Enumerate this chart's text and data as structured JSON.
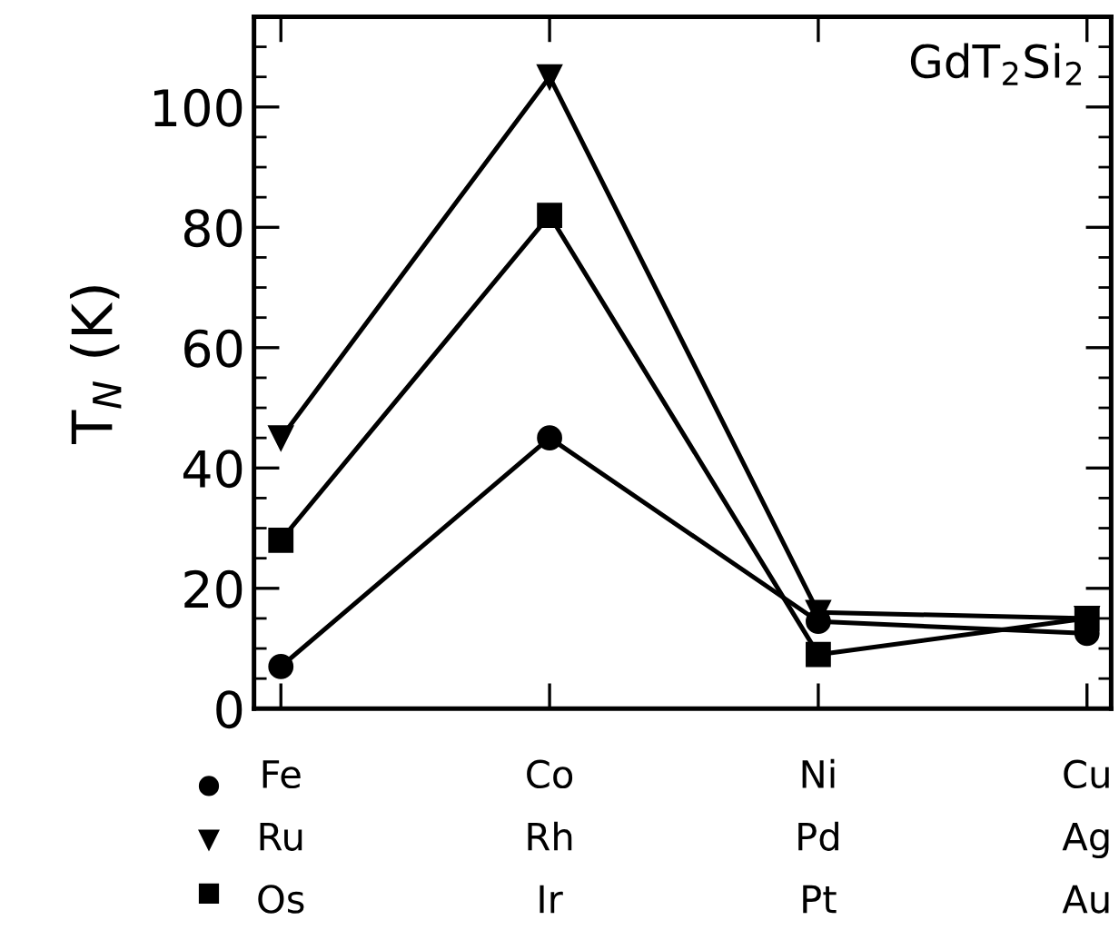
{
  "chart_data": {
    "type": "line",
    "ylabel": "T$_{N}$ (K)",
    "annotations": [
      "GdT$_{2}$Si$_{2}$"
    ],
    "categories": [
      "Fe\nRu\nOs",
      "Co\nRh\nIr",
      "Ni\nPd\nPt",
      "Cu\nAg\nAu"
    ],
    "series": [
      {
        "color": "#000000",
        "marker": "circle",
        "values": [
          7,
          45,
          14.5,
          12.5
        ]
      },
      {
        "color": "#000000",
        "marker": "triangle",
        "values": [
          45,
          105,
          16,
          15
        ]
      },
      {
        "color": "#000000",
        "marker": "square",
        "values": [
          28,
          82,
          9,
          15
        ]
      }
    ],
    "ylim": [
      0,
      115
    ],
    "yticks": [
      0,
      20,
      40,
      60,
      80,
      100
    ],
    "line_style": "solid",
    "grid": false
  }
}
